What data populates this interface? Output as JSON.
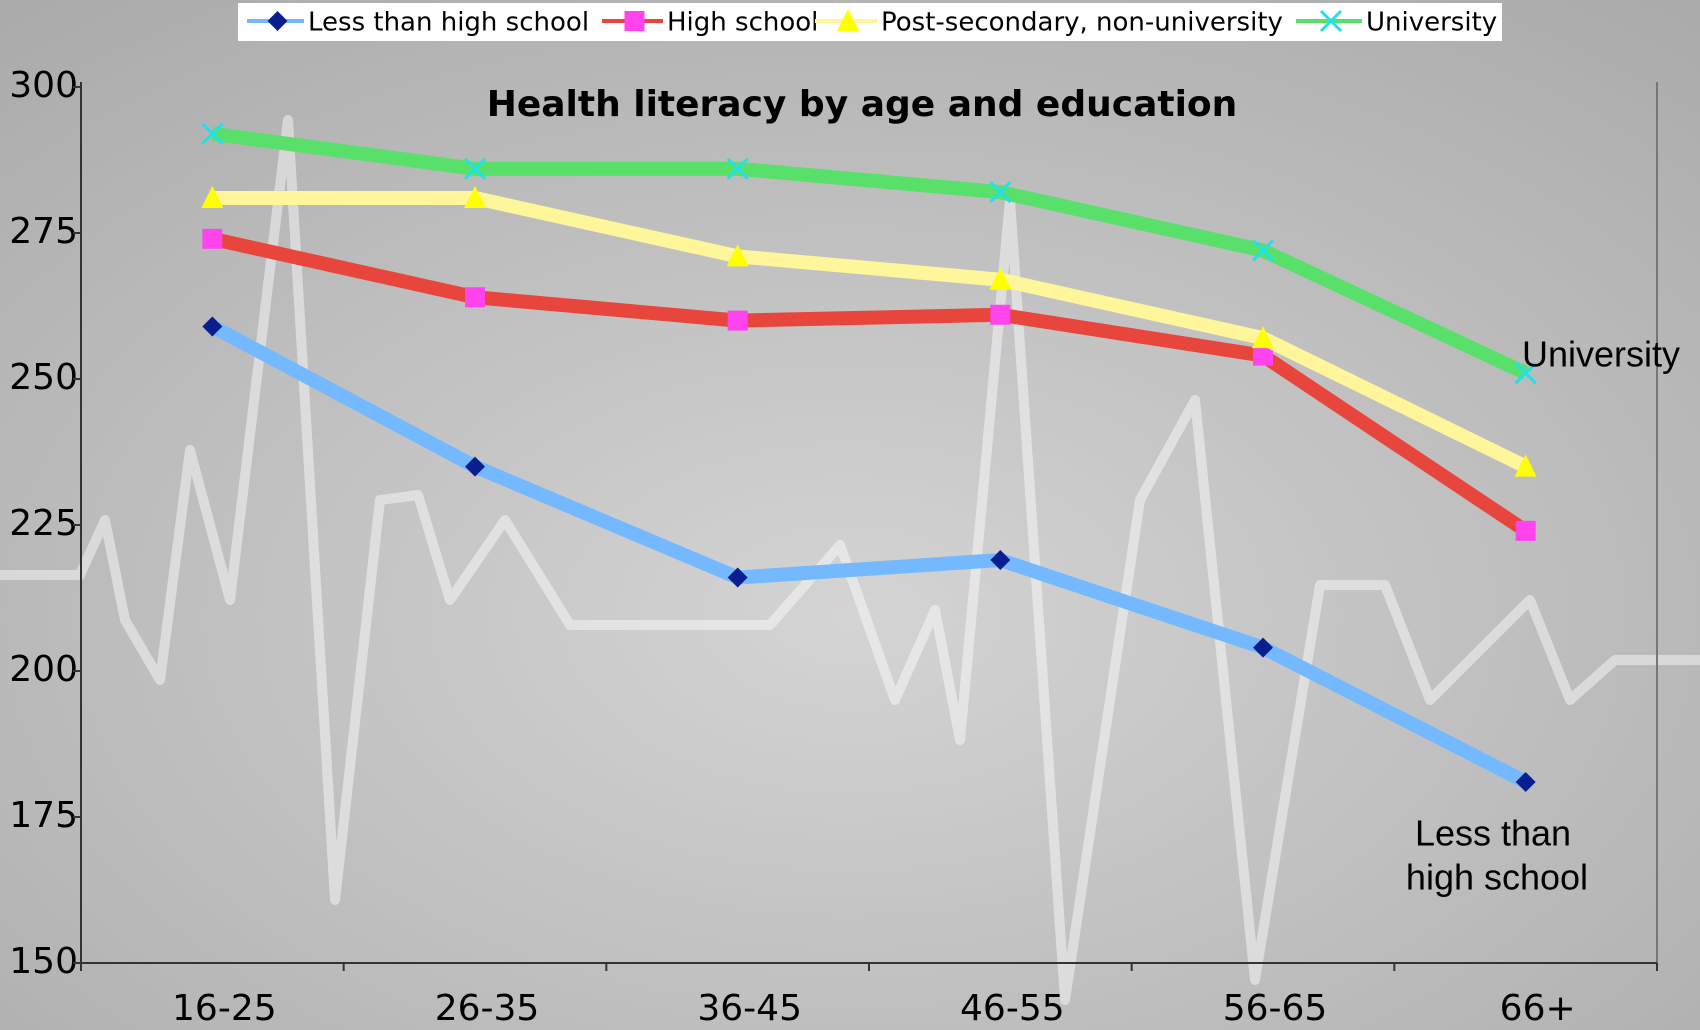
{
  "chart_data": {
    "type": "line",
    "title": "Health literacy by age and education",
    "categories": [
      "16-25",
      "26-35",
      "36-45",
      "46-55",
      "56-65",
      "66+"
    ],
    "series": [
      {
        "name": "Less than high school",
        "color": "#74b9ff",
        "marker": "diamond",
        "marker_color": "#0a1f8f",
        "values": [
          259,
          235,
          216,
          219,
          204,
          181
        ]
      },
      {
        "name": "High school",
        "color": "#e8453c",
        "marker": "square",
        "marker_color": "#ff44ee",
        "values": [
          274,
          264,
          260,
          261,
          254,
          224
        ]
      },
      {
        "name": "Post-secondary, non-university",
        "color": "#fff59a",
        "marker": "triangle",
        "marker_color": "#ffff00",
        "values": [
          281,
          281,
          271,
          267,
          257,
          235
        ]
      },
      {
        "name": "University",
        "color": "#58e06a",
        "marker": "x",
        "marker_color": "#22e0e8",
        "values": [
          292,
          286,
          286,
          282,
          272,
          251
        ]
      }
    ],
    "ylim": [
      150,
      300
    ],
    "yticks": [
      150,
      175,
      200,
      225,
      250,
      275,
      300
    ],
    "legend": "top",
    "annotations": [
      [
        "University"
      ],
      [
        "Less than",
        "high school"
      ]
    ]
  }
}
